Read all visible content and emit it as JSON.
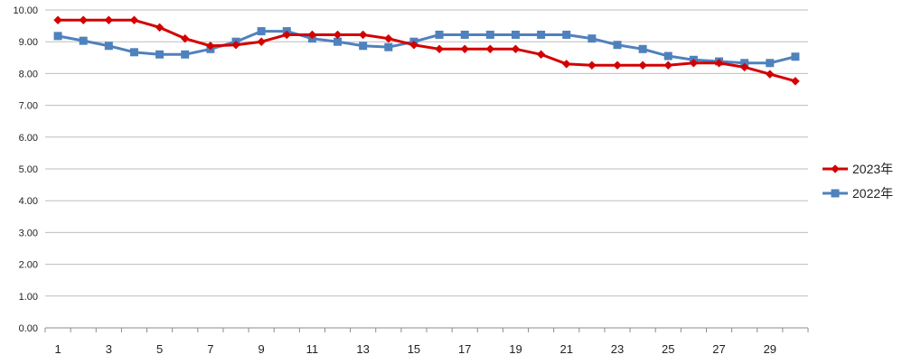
{
  "chart_data": {
    "type": "line",
    "x": [
      1,
      2,
      3,
      4,
      5,
      6,
      7,
      8,
      9,
      10,
      11,
      12,
      13,
      14,
      15,
      16,
      17,
      18,
      19,
      20,
      21,
      22,
      23,
      24,
      25,
      26,
      27,
      28,
      29,
      30
    ],
    "x_tick_labels": [
      "1",
      "3",
      "5",
      "7",
      "9",
      "11",
      "13",
      "15",
      "17",
      "19",
      "21",
      "23",
      "25",
      "27",
      "29"
    ],
    "y_tick_labels": [
      "0.00",
      "1.00",
      "2.00",
      "3.00",
      "4.00",
      "5.00",
      "6.00",
      "7.00",
      "8.00",
      "9.00",
      "10.00"
    ],
    "ylim": [
      0,
      10
    ],
    "grid": "horizontal",
    "legend": "right",
    "series": [
      {
        "name": "2023年",
        "color": "#d40000",
        "marker": "diamond",
        "values": [
          9.68,
          9.68,
          9.68,
          9.68,
          9.45,
          9.1,
          8.87,
          8.9,
          9.0,
          9.22,
          9.22,
          9.22,
          9.22,
          9.1,
          8.9,
          8.77,
          8.77,
          8.77,
          8.77,
          8.6,
          8.3,
          8.26,
          8.26,
          8.26,
          8.26,
          8.33,
          8.33,
          8.2,
          7.98,
          7.76
        ]
      },
      {
        "name": "2022年",
        "color": "#4f81bd",
        "marker": "square",
        "values": [
          9.18,
          9.03,
          8.87,
          8.67,
          8.6,
          8.6,
          8.77,
          9.0,
          9.33,
          9.33,
          9.1,
          9.0,
          8.87,
          8.83,
          9.0,
          9.22,
          9.22,
          9.22,
          9.22,
          9.22,
          9.22,
          9.1,
          8.9,
          8.77,
          8.55,
          8.43,
          8.38,
          8.33,
          8.33,
          8.53
        ]
      }
    ]
  }
}
